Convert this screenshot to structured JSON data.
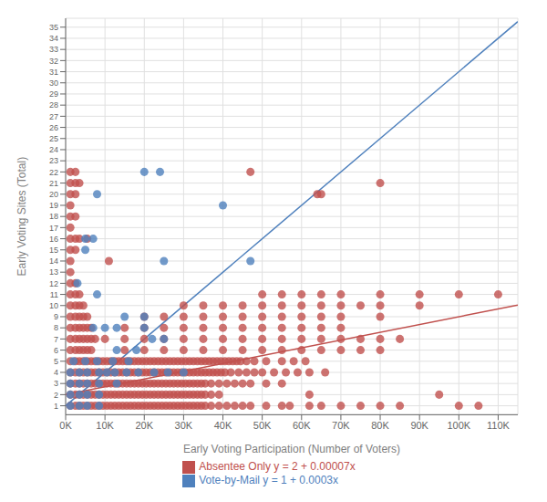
{
  "chart_data": {
    "type": "scatter",
    "xlabel": "Early Voting Participation (Number of Voters)",
    "ylabel": "Early Voting Sites (Total)",
    "xlim": [
      0,
      115000
    ],
    "ylim": [
      0.2,
      35.8
    ],
    "xticks": [
      {
        "value": 0,
        "label": "0K"
      },
      {
        "value": 10000,
        "label": "10K"
      },
      {
        "value": 20000,
        "label": "20K"
      },
      {
        "value": 30000,
        "label": "30K"
      },
      {
        "value": 40000,
        "label": "40K"
      },
      {
        "value": 50000,
        "label": "50K"
      },
      {
        "value": 60000,
        "label": "60K"
      },
      {
        "value": 70000,
        "label": "70K"
      },
      {
        "value": 80000,
        "label": "80K"
      },
      {
        "value": 90000,
        "label": "90K"
      },
      {
        "value": 100000,
        "label": "100K"
      },
      {
        "value": 110000,
        "label": "110K"
      }
    ],
    "yticks": [
      1,
      2,
      3,
      4,
      5,
      6,
      7,
      8,
      9,
      10,
      11,
      12,
      13,
      14,
      15,
      16,
      17,
      18,
      19,
      20,
      21,
      22,
      23,
      24,
      25,
      26,
      27,
      28,
      29,
      30,
      31,
      32,
      33,
      34,
      35
    ],
    "grid": true,
    "legend": "bottom",
    "series": [
      {
        "type": "line",
        "color": "#c0504d",
        "line_style": "solid",
        "x": [
          0,
          115000
        ],
        "values": [
          2,
          10.05
        ]
      },
      {
        "type": "line",
        "color": "#4f81bd",
        "line_style": "solid",
        "x": [
          0,
          115000
        ],
        "values": [
          1,
          35.5
        ]
      },
      {
        "name": "Absentee Only y = 2 + 0.00007x",
        "type": "scatter",
        "color": "#c0504d",
        "marker": "circle",
        "x": [
          1200,
          2500,
          47000,
          1200,
          2500,
          3500,
          1200,
          2500,
          64000,
          65000,
          1200,
          1200,
          2500,
          1200,
          1200,
          2500,
          3500,
          5500,
          1200,
          2500,
          1200,
          11000,
          1200,
          1200,
          2500,
          1200,
          2500,
          3500,
          1200,
          2500,
          3500,
          4500,
          1200,
          2500,
          3500,
          4500,
          5500,
          1200,
          2500,
          3500,
          4500,
          5500,
          6500,
          1200,
          2500,
          3500,
          4500,
          5500,
          6500,
          7500,
          1200,
          2500,
          3500,
          4500,
          5500,
          6500,
          1200,
          2500,
          3500,
          4500,
          5500,
          6500,
          7500,
          8500,
          9500,
          10500,
          11500,
          12500,
          13500,
          14500,
          15500,
          16500,
          17500,
          18500,
          19500,
          20500,
          21500,
          22500,
          23500,
          24500,
          25500,
          26500,
          27500,
          28500,
          29500,
          30500,
          31500,
          32500,
          33500,
          34500,
          35500,
          36500,
          37500,
          38500,
          39500,
          40500,
          41500,
          42500,
          43500,
          44500,
          46000,
          48000,
          51000,
          55000,
          58000,
          61000,
          1200,
          2500,
          3500,
          4500,
          5500,
          6500,
          7500,
          8500,
          9500,
          10500,
          11500,
          12500,
          13500,
          14500,
          15500,
          16500,
          17500,
          18500,
          19500,
          20500,
          21500,
          22500,
          23500,
          24500,
          25500,
          26500,
          27500,
          28500,
          29500,
          30500,
          31500,
          32500,
          33500,
          34500,
          35500,
          36500,
          37500,
          38500,
          39500,
          40500,
          42000,
          44000,
          46000,
          48000,
          50000,
          53000,
          56000,
          59000,
          62000,
          66000,
          1200,
          2500,
          3500,
          4500,
          5500,
          6500,
          7500,
          8500,
          9500,
          10500,
          11500,
          12500,
          13500,
          14500,
          15500,
          16500,
          17500,
          18500,
          19500,
          20500,
          21500,
          22500,
          23500,
          24500,
          25500,
          26500,
          27500,
          28500,
          29500,
          30500,
          31500,
          32500,
          33500,
          34500,
          35500,
          37000,
          39000,
          41000,
          43000,
          45000,
          47000,
          51000,
          55000,
          1200,
          2500,
          3500,
          4500,
          5500,
          6500,
          7500,
          8500,
          9500,
          10500,
          11500,
          12500,
          13500,
          14500,
          15500,
          16500,
          17500,
          18500,
          19500,
          20500,
          21500,
          22500,
          23500,
          24500,
          25500,
          26500,
          27500,
          28500,
          29500,
          30500,
          31500,
          32500,
          33500,
          34500,
          35500,
          37000,
          39000,
          62000,
          95000,
          1200,
          2500,
          3500,
          4500,
          5500,
          6500,
          7500,
          8500,
          9500,
          10500,
          11500,
          12500,
          13500,
          14500,
          15500,
          16500,
          17500,
          18500,
          19500,
          20500,
          21500,
          22500,
          23500,
          24500,
          25500,
          26500,
          27500,
          28500,
          29500,
          30500,
          31500,
          32500,
          33500,
          34500,
          35500,
          37000,
          39000,
          41000,
          43000,
          45000,
          47000,
          51000,
          55000,
          57000,
          62000,
          65000,
          70000,
          75000,
          80000,
          85000,
          100000,
          105000,
          50000,
          55000,
          60000,
          65000,
          70000,
          80000,
          90000,
          100000,
          110000,
          30000,
          35000,
          40000,
          45000,
          50000,
          55000,
          60000,
          65000,
          70000,
          75000,
          80000,
          90000,
          20000,
          25000,
          30000,
          35000,
          40000,
          45000,
          50000,
          55000,
          60000,
          65000,
          70000,
          80000,
          15000,
          20000,
          25000,
          30000,
          35000,
          40000,
          45000,
          50000,
          55000,
          60000,
          65000,
          70000,
          10000,
          15000,
          20000,
          25000,
          30000,
          35000,
          40000,
          45000,
          50000,
          55000,
          60000,
          65000,
          70000,
          75000,
          80000,
          85000,
          15000,
          20000,
          25000,
          30000,
          35000,
          40000,
          45000,
          50000,
          55000,
          60000,
          65000,
          70000,
          75000,
          80000,
          80000
        ],
        "values": [
          22,
          22,
          22,
          21,
          21,
          21,
          20,
          20,
          20,
          20,
          19,
          18,
          18,
          17,
          16,
          16,
          16,
          16,
          15,
          15,
          14,
          14,
          13,
          12,
          12,
          11,
          11,
          11,
          10,
          10,
          10,
          10,
          9,
          9,
          9,
          9,
          9,
          8,
          8,
          8,
          8,
          8,
          8,
          7,
          7,
          7,
          7,
          7,
          7,
          7,
          6,
          6,
          6,
          6,
          6,
          6,
          5,
          5,
          5,
          5,
          5,
          5,
          5,
          5,
          5,
          5,
          5,
          5,
          5,
          5,
          5,
          5,
          5,
          5,
          5,
          5,
          5,
          5,
          5,
          5,
          5,
          5,
          5,
          5,
          5,
          5,
          5,
          5,
          5,
          5,
          5,
          5,
          5,
          5,
          5,
          5,
          5,
          5,
          5,
          5,
          5,
          5,
          5,
          5,
          5,
          5,
          4,
          4,
          4,
          4,
          4,
          4,
          4,
          4,
          4,
          4,
          4,
          4,
          4,
          4,
          4,
          4,
          4,
          4,
          4,
          4,
          4,
          4,
          4,
          4,
          4,
          4,
          4,
          4,
          4,
          4,
          4,
          4,
          4,
          4,
          4,
          4,
          4,
          4,
          4,
          4,
          4,
          4,
          4,
          4,
          4,
          4,
          4,
          4,
          4,
          4,
          3,
          3,
          3,
          3,
          3,
          3,
          3,
          3,
          3,
          3,
          3,
          3,
          3,
          3,
          3,
          3,
          3,
          3,
          3,
          3,
          3,
          3,
          3,
          3,
          3,
          3,
          3,
          3,
          3,
          3,
          3,
          3,
          3,
          3,
          3,
          3,
          3,
          3,
          3,
          3,
          3,
          3,
          3,
          2,
          2,
          2,
          2,
          2,
          2,
          2,
          2,
          2,
          2,
          2,
          2,
          2,
          2,
          2,
          2,
          2,
          2,
          2,
          2,
          2,
          2,
          2,
          2,
          2,
          2,
          2,
          2,
          2,
          2,
          2,
          2,
          2,
          2,
          2,
          2,
          2,
          2,
          2,
          1,
          1,
          1,
          1,
          1,
          1,
          1,
          1,
          1,
          1,
          1,
          1,
          1,
          1,
          1,
          1,
          1,
          1,
          1,
          1,
          1,
          1,
          1,
          1,
          1,
          1,
          1,
          1,
          1,
          1,
          1,
          1,
          1,
          1,
          1,
          1,
          1,
          1,
          1,
          1,
          1,
          1,
          1,
          1,
          1,
          1,
          1,
          1,
          1,
          1,
          1,
          1,
          11,
          11,
          11,
          11,
          11,
          11,
          11,
          11,
          11,
          10,
          10,
          10,
          10,
          10,
          10,
          10,
          10,
          10,
          10,
          10,
          10,
          9,
          9,
          9,
          9,
          9,
          9,
          9,
          9,
          9,
          9,
          9,
          9,
          8,
          8,
          8,
          8,
          8,
          8,
          8,
          8,
          8,
          8,
          8,
          8,
          7,
          7,
          7,
          7,
          7,
          7,
          7,
          7,
          7,
          7,
          7,
          7,
          7,
          7,
          7,
          7,
          6,
          6,
          6,
          6,
          6,
          6,
          6,
          6,
          6,
          6,
          6,
          6,
          6,
          6,
          21
        ]
      },
      {
        "name": "Vote-by-Mail y = 1 + 0.0003x",
        "type": "scatter",
        "color": "#4f81bd",
        "marker": "circle",
        "x": [
          20000,
          24000,
          8000,
          40000,
          5000,
          7000,
          5000,
          25000,
          47000,
          3000,
          8000,
          15000,
          20000,
          7000,
          10000,
          13000,
          20000,
          22000,
          25000,
          13000,
          18000,
          2000,
          5000,
          8000,
          12000,
          16000,
          1200,
          3500,
          5500,
          8500,
          10500,
          12500,
          15500,
          18500,
          22500,
          26000,
          30000,
          1200,
          3500,
          5500,
          8500,
          13000,
          1200,
          3500,
          5500,
          8500,
          1200,
          3500,
          5500,
          8500
        ],
        "values": [
          22,
          22,
          20,
          19,
          16,
          16,
          15,
          14,
          14,
          12,
          11,
          9,
          9,
          8,
          8,
          8,
          8,
          7,
          7,
          6,
          6,
          5,
          5,
          5,
          5,
          5,
          4,
          4,
          4,
          4,
          4,
          4,
          4,
          4,
          4,
          4,
          4,
          3,
          3,
          3,
          3,
          3,
          2,
          2,
          2,
          2,
          1,
          1,
          1,
          1
        ]
      }
    ]
  }
}
